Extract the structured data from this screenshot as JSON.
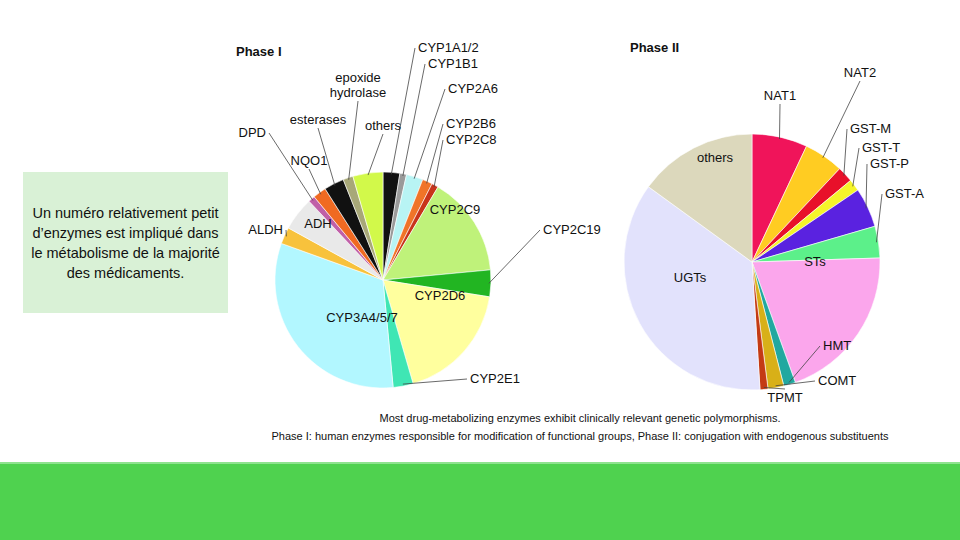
{
  "chart_data": [
    {
      "type": "pie",
      "title": "Phase I",
      "categories": [
        "CYP1A1/2",
        "CYP1B1",
        "CYP2A6",
        "CYP2B6",
        "CYP2C8",
        "CYP2C9",
        "CYP2C19",
        "CYP2D6",
        "CYP2E1",
        "CYP3A4/5/7",
        "ALDH",
        "ADH",
        "DPD",
        "NQO1",
        "esterases",
        "epoxide hydrolase",
        "others"
      ],
      "values": [
        2.5,
        1,
        2.5,
        1.5,
        1,
        15,
        4,
        18,
        3,
        32,
        2.5,
        5,
        1,
        2,
        3,
        1.5,
        4.5
      ],
      "colors": [
        "#111111",
        "#9a9a9a",
        "#b8f4f4",
        "#f07428",
        "#c8341a",
        "#bff27a",
        "#22b522",
        "#ffff9e",
        "#3fe6b4",
        "#b2f7ff",
        "#f8c23c",
        "#e9e9e9",
        "#c060a8",
        "#f06a22",
        "#111111",
        "#a8a878",
        "#d2f94a"
      ]
    },
    {
      "type": "pie",
      "title": "Phase II",
      "categories": [
        "NAT1",
        "NAT2",
        "GST-M",
        "GST-T",
        "GST-P",
        "GST-A",
        "STs",
        "HMT",
        "COMT",
        "TPMT",
        "UGTs",
        "others"
      ],
      "values": [
        7,
        5,
        2,
        1.5,
        5,
        4,
        20,
        1.5,
        2,
        1,
        36,
        15
      ],
      "colors": [
        "#f0145a",
        "#ffcc22",
        "#e8102a",
        "#f5f52a",
        "#5a22e0",
        "#5cf08a",
        "#fba6ec",
        "#22a8a0",
        "#d8b018",
        "#c43a14",
        "#e2e2fc",
        "#dcd8bc"
      ]
    }
  ],
  "text_box": "Un numéro relativement petit d’enzymes est impliqué dans le métabolisme de la majorité des médicaments.",
  "caption": [
    "Most drug-metabolizing enzymes exhibit clinically relevant genetic polymorphisms.",
    "Phase I: human enzymes responsible for modification of functional groups, Phase II: conjugation with endogenous substituents"
  ]
}
